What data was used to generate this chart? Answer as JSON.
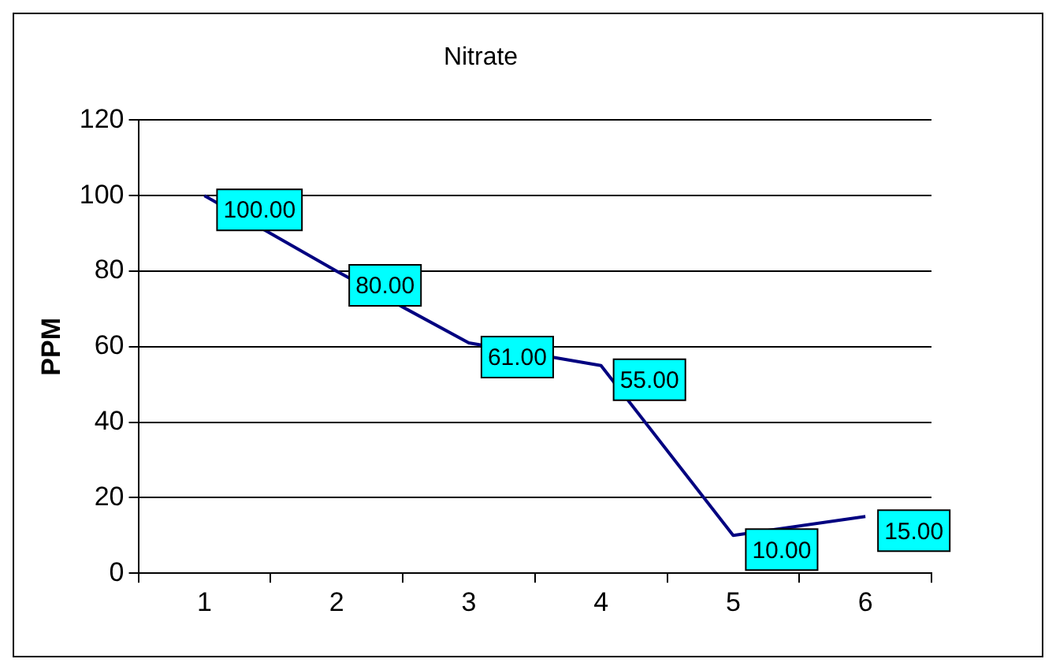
{
  "chart_data": {
    "type": "line",
    "title": "Nitrate",
    "ylabel": "PPM",
    "categories": [
      "1",
      "2",
      "3",
      "4",
      "5",
      "6"
    ],
    "series": [
      {
        "color": "#000080",
        "values": [
          100,
          80,
          61,
          55,
          10,
          15
        ],
        "value_labels": [
          "100.00",
          "80.00",
          "61.00",
          "55.00",
          "10.00",
          "15.00"
        ]
      }
    ],
    "ylim": [
      0,
      120
    ],
    "yticks": [
      0,
      20,
      40,
      60,
      80,
      100,
      120
    ],
    "grid": "y",
    "legend": false
  }
}
